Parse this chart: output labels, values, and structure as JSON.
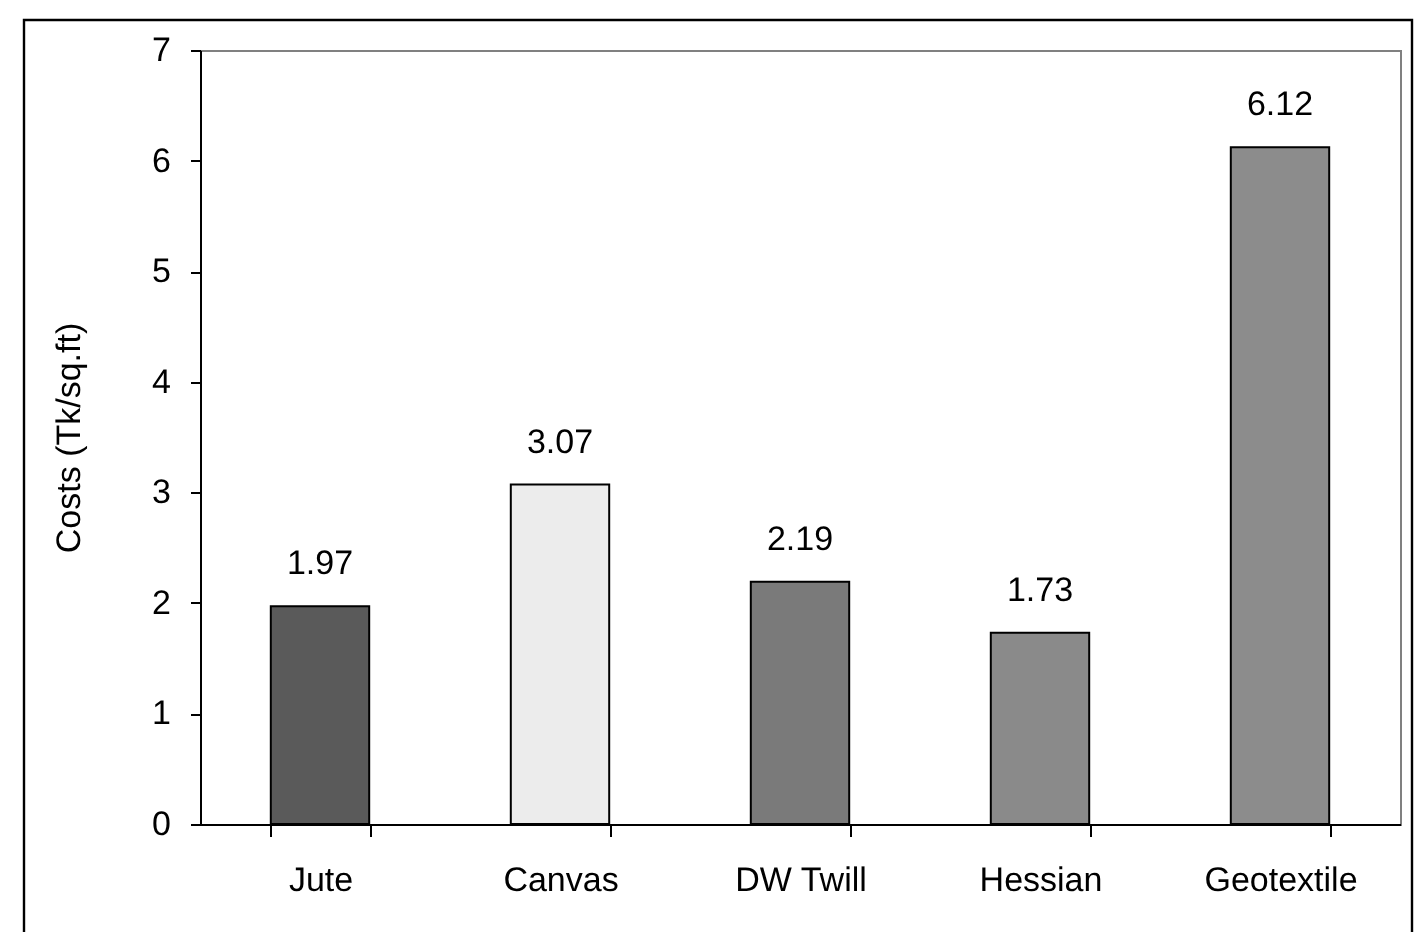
{
  "chart_data": {
    "type": "bar",
    "categories": [
      "Jute",
      "Canvas",
      "DW Twill",
      "Hessian",
      "Geotextile"
    ],
    "values": [
      1.97,
      3.07,
      2.19,
      1.73,
      6.12
    ],
    "colors": [
      "#5a5a5a",
      "#ececec",
      "#7a7a7a",
      "#8a8a8a",
      "#8c8c8c"
    ],
    "ylabel": "Costs (Tk/sq.ft)",
    "ylim": [
      0,
      7
    ],
    "yticks": [
      0,
      1,
      2,
      3,
      4,
      5,
      6,
      7
    ],
    "data_labels": true
  }
}
